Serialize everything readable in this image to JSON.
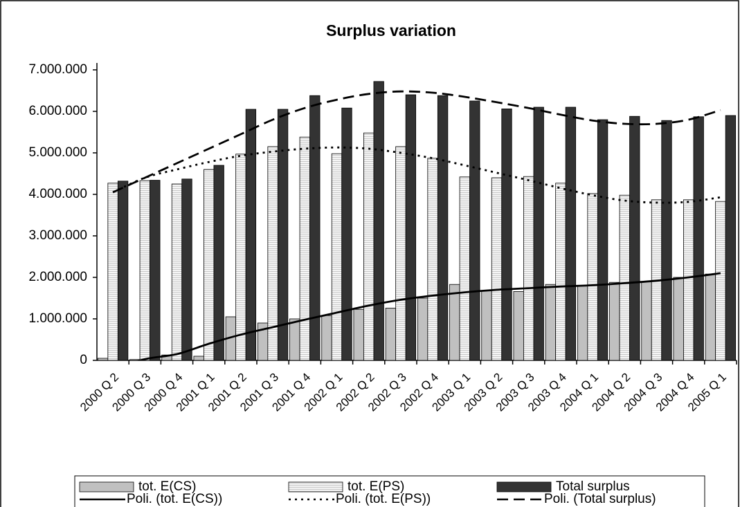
{
  "chart_data": {
    "type": "bar",
    "title": "Surplus variation",
    "categories": [
      "2000 Q 2",
      "2000 Q 3",
      "2000 Q 4",
      "2001 Q 1",
      "2001 Q 2",
      "2001 Q 3",
      "2001 Q 4",
      "2002 Q 1",
      "2002 Q 2",
      "2002 Q 3",
      "2002 Q 4",
      "2003 Q 1",
      "2003 Q 2",
      "2003 Q 3",
      "2003 Q 4",
      "2004 Q 1",
      "2004 Q 2",
      "2004 Q 3",
      "2004 Q 4",
      "2005 Q 1"
    ],
    "series": [
      {
        "name": "tot. E(CS)",
        "type": "bar",
        "color": "#c0c0c0",
        "pattern": false,
        "values": [
          50000,
          20000,
          130000,
          100000,
          1050000,
          900000,
          1000000,
          1080000,
          1230000,
          1260000,
          1500000,
          1830000,
          1680000,
          1660000,
          1830000,
          1800000,
          1880000,
          1900000,
          2000000,
          2080000
        ]
      },
      {
        "name": "tot. E(PS)",
        "type": "bar",
        "color": "#f2f2f2",
        "pattern": true,
        "values": [
          4270000,
          4330000,
          4250000,
          4600000,
          4970000,
          5150000,
          5380000,
          4980000,
          5480000,
          5150000,
          4870000,
          4420000,
          4400000,
          4430000,
          4270000,
          4020000,
          3980000,
          3870000,
          3870000,
          3830000
        ]
      },
      {
        "name": "Total surplus",
        "type": "bar",
        "color": "#333333",
        "pattern": false,
        "values": [
          4320000,
          4340000,
          4370000,
          4700000,
          6050000,
          6050000,
          6380000,
          6080000,
          6720000,
          6400000,
          6380000,
          6250000,
          6060000,
          6100000,
          6100000,
          5800000,
          5880000,
          5780000,
          5870000,
          5900000
        ]
      },
      {
        "name": "Poli. (tot. E(CS))",
        "type": "line",
        "color": "#000000",
        "dash": "solid",
        "values": [
          -200000,
          30000,
          150000,
          400000,
          620000,
          800000,
          980000,
          1150000,
          1320000,
          1460000,
          1560000,
          1640000,
          1700000,
          1740000,
          1780000,
          1810000,
          1860000,
          1920000,
          2000000,
          2100000
        ]
      },
      {
        "name": "Poli. (tot. E(PS))",
        "type": "line",
        "color": "#000000",
        "dash": "dot",
        "values": [
          4050000,
          4400000,
          4600000,
          4780000,
          4930000,
          5030000,
          5100000,
          5130000,
          5100000,
          5000000,
          4870000,
          4700000,
          4520000,
          4340000,
          4150000,
          3980000,
          3850000,
          3800000,
          3820000,
          3930000
        ]
      },
      {
        "name": "Poli. (Total surplus)",
        "type": "line",
        "color": "#000000",
        "dash": "dash",
        "values": [
          4050000,
          4400000,
          4750000,
          5100000,
          5450000,
          5800000,
          6080000,
          6280000,
          6420000,
          6480000,
          6450000,
          6350000,
          6220000,
          6080000,
          5920000,
          5780000,
          5700000,
          5700000,
          5800000,
          6030000
        ]
      }
    ],
    "ylim": [
      0,
      7000000
    ],
    "yticks": [
      0,
      {
        "value": 1000000,
        "label": "1.000.000"
      },
      {
        "value": 2000000,
        "label": "2.000.000"
      },
      {
        "value": 3000000,
        "label": "3.000.000"
      },
      {
        "value": 4000000,
        "label": "4.000.000"
      },
      {
        "value": 5000000,
        "label": "5.000.000"
      },
      {
        "value": 6000000,
        "label": "6.000.000"
      },
      {
        "value": 7000000,
        "label": "7.000.000"
      }
    ],
    "grid": false,
    "legend": "bottom"
  }
}
